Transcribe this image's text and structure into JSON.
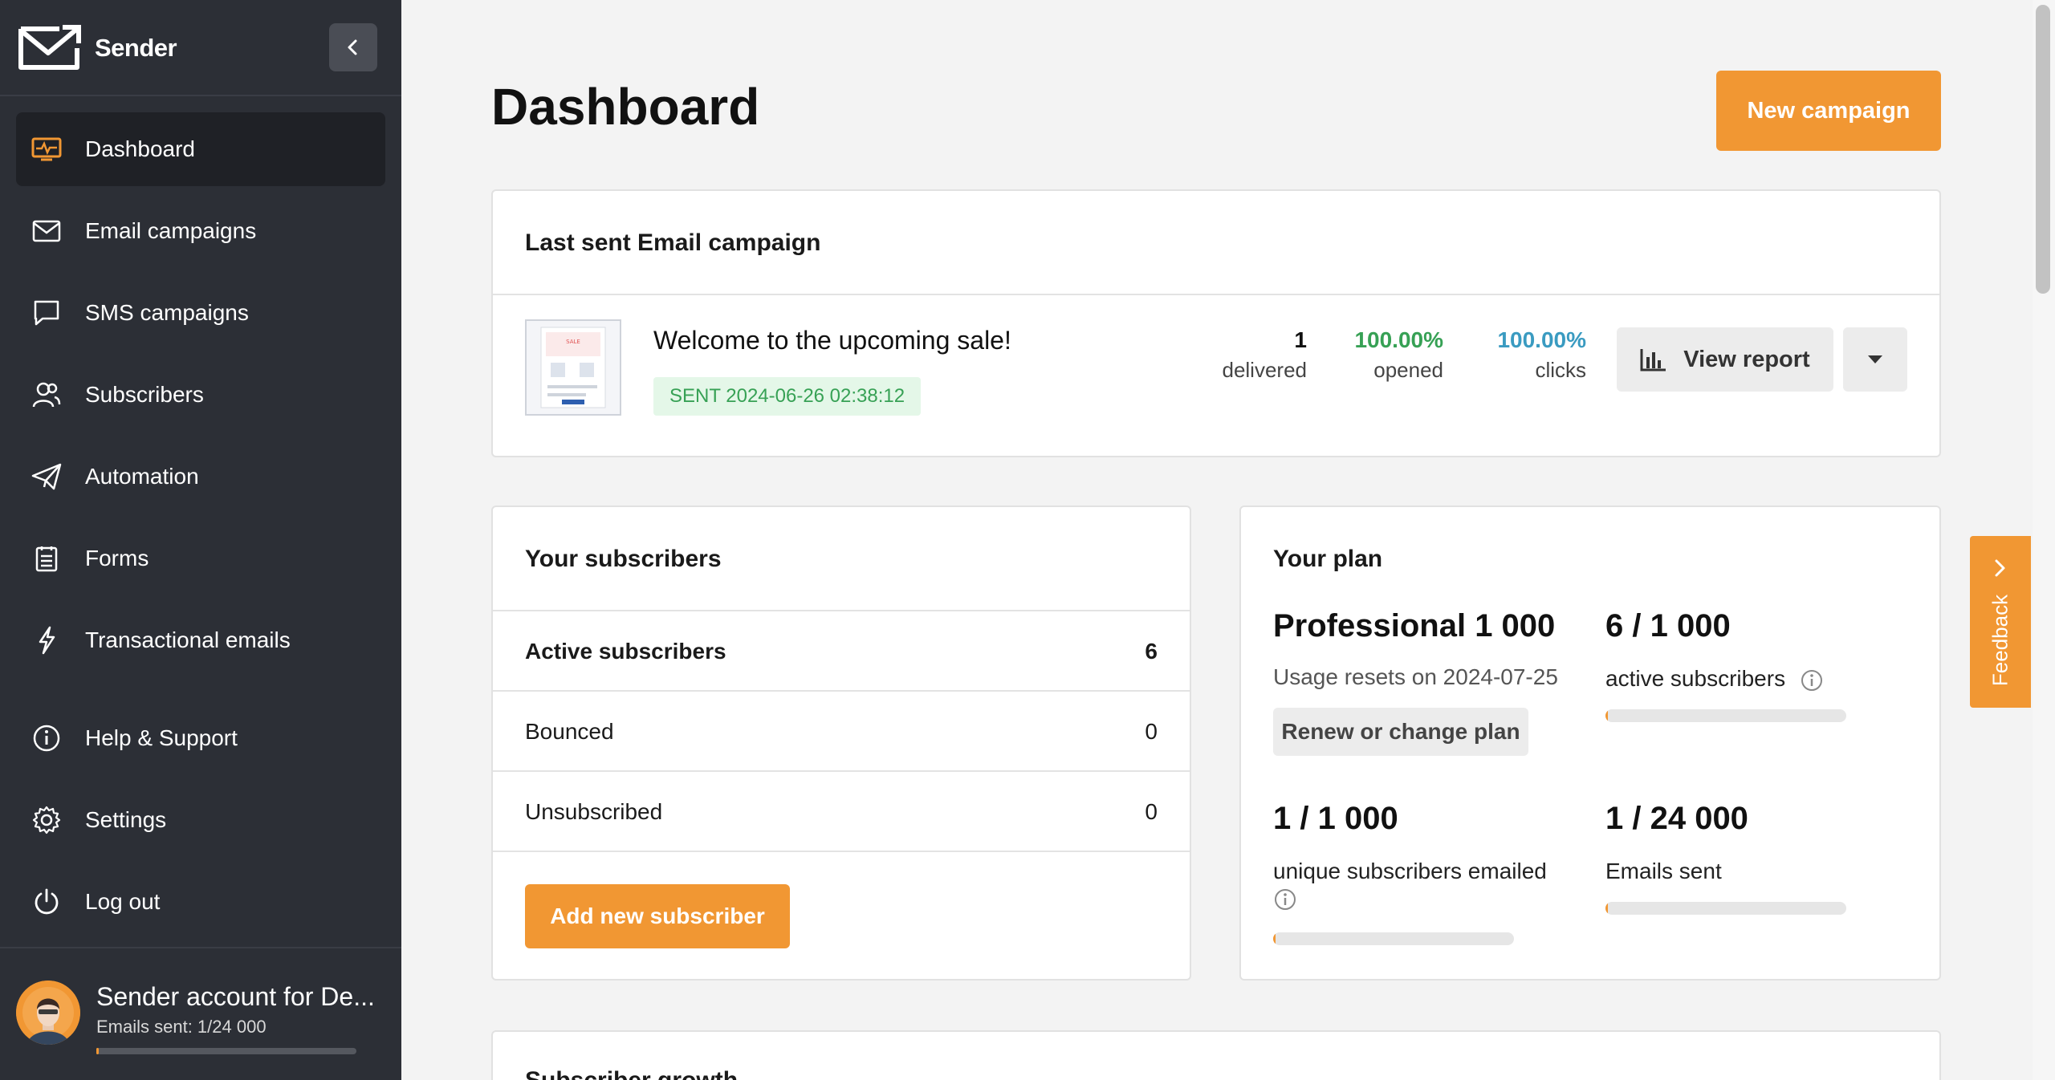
{
  "brand": {
    "name": "Sender"
  },
  "sidebar": {
    "items": [
      {
        "label": "Dashboard",
        "icon": "dashboard-icon",
        "active": true
      },
      {
        "label": "Email campaigns",
        "icon": "envelope-icon"
      },
      {
        "label": "SMS campaigns",
        "icon": "chat-bubble-icon"
      },
      {
        "label": "Subscribers",
        "icon": "users-icon"
      },
      {
        "label": "Automation",
        "icon": "paper-plane-icon"
      },
      {
        "label": "Forms",
        "icon": "clipboard-icon"
      },
      {
        "label": "Transactional emails",
        "icon": "lightning-icon"
      },
      {
        "label": "Help & Support",
        "icon": "info-icon"
      },
      {
        "label": "Settings",
        "icon": "gear-icon"
      },
      {
        "label": "Log out",
        "icon": "power-icon"
      }
    ],
    "account": {
      "name": "Sender account for De...",
      "emails_sent": "Emails sent: 1/24 000",
      "progress": 4.17e-05
    }
  },
  "page": {
    "title": "Dashboard",
    "new_campaign_label": "New campaign"
  },
  "last_campaign": {
    "title": "Last sent Email campaign",
    "name": "Welcome to the upcoming sale!",
    "status": "SENT 2024-06-26 02:38:12",
    "delivered_value": "1",
    "delivered_label": "delivered",
    "opened_value": "100.00%",
    "opened_label": "opened",
    "clicks_value": "100.00%",
    "clicks_label": "clicks",
    "view_report_label": "View report"
  },
  "subscribers": {
    "title": "Your subscribers",
    "rows": [
      {
        "label": "Active subscribers",
        "value": "6"
      },
      {
        "label": "Bounced",
        "value": "0"
      },
      {
        "label": "Unsubscribed",
        "value": "0"
      }
    ],
    "add_label": "Add new subscriber"
  },
  "plan": {
    "title": "Your plan",
    "name": "Professional 1 000",
    "resets": "Usage resets on 2024-07-25",
    "renew_label": "Renew or change plan",
    "active_value": "6 / 1 000",
    "active_label": "active subscribers",
    "active_progress": 0.006,
    "unique_value": "1 / 1 000",
    "unique_label": "unique subscribers emailed",
    "unique_progress": 0.001,
    "sent_value": "1 / 24 000",
    "sent_label": "Emails sent",
    "sent_progress": 4.17e-05
  },
  "growth": {
    "title": "Subscriber growth"
  },
  "feedback": {
    "label": "Feedback"
  },
  "colors": {
    "accent": "#f19733",
    "sidebar": "#2c2f36",
    "opened": "#37a155",
    "clicks": "#3a9bc1"
  }
}
